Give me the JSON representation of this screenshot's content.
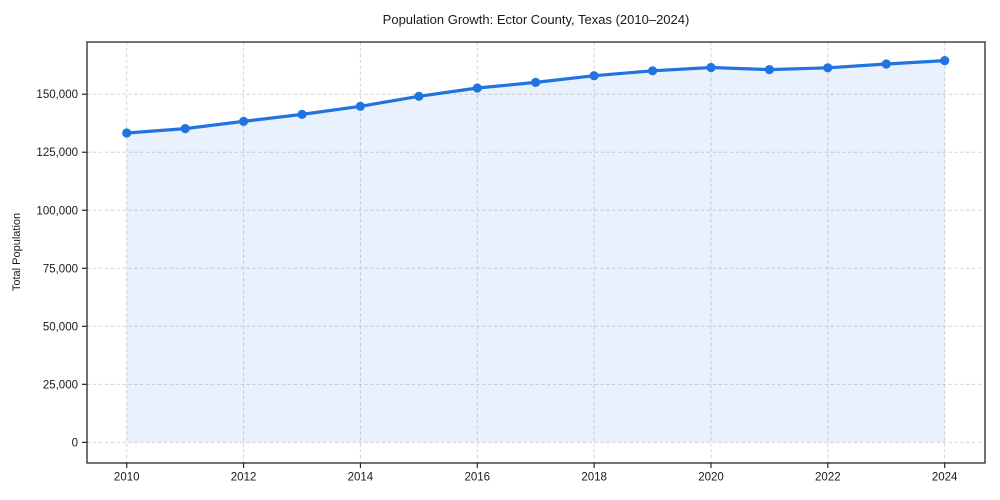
{
  "chart_data": {
    "type": "area",
    "title": "Population Growth: Ector County, Texas (2010–2024)",
    "ylabel": "Total Population",
    "xlabel": "",
    "series": [
      {
        "name": "Total Population",
        "x": [
          2010,
          2011,
          2012,
          2013,
          2014,
          2015,
          2016,
          2017,
          2018,
          2019,
          2020,
          2021,
          2022,
          2023,
          2024
        ],
        "values": [
          133300,
          135200,
          138300,
          141300,
          144800,
          149100,
          152700,
          155100,
          158000,
          160100,
          161500,
          160600,
          161400,
          163000,
          164500
        ]
      }
    ],
    "x_ticks": [
      {
        "value": 2010,
        "label": "2010"
      },
      {
        "value": 2012,
        "label": "2012"
      },
      {
        "value": 2014,
        "label": "2014"
      },
      {
        "value": 2016,
        "label": "2016"
      },
      {
        "value": 2018,
        "label": "2018"
      },
      {
        "value": 2020,
        "label": "2020"
      },
      {
        "value": 2022,
        "label": "2022"
      },
      {
        "value": 2024,
        "label": "2024"
      }
    ],
    "y_ticks": [
      {
        "value": 0,
        "label": "0"
      },
      {
        "value": 25000,
        "label": "25,000"
      },
      {
        "value": 50000,
        "label": "50,000"
      },
      {
        "value": 75000,
        "label": "75,000"
      },
      {
        "value": 100000,
        "label": "100,000"
      },
      {
        "value": 125000,
        "label": "125,000"
      },
      {
        "value": 150000,
        "label": "150,000"
      }
    ],
    "xlim": [
      2009.32,
      2024.69
    ],
    "ylim": [
      -8900,
      172500
    ],
    "grid": true,
    "grid_style": "dashed",
    "legend": false,
    "fill_baseline": 0,
    "colors": {
      "line": "#2273e2",
      "marker": "#2273e2",
      "fill": "rgba(34, 115, 226, 0.10)",
      "grid": "#d5d5d5",
      "spine": "#262626",
      "tick_text": "#1a1a1a",
      "background": "#ffffff"
    }
  }
}
